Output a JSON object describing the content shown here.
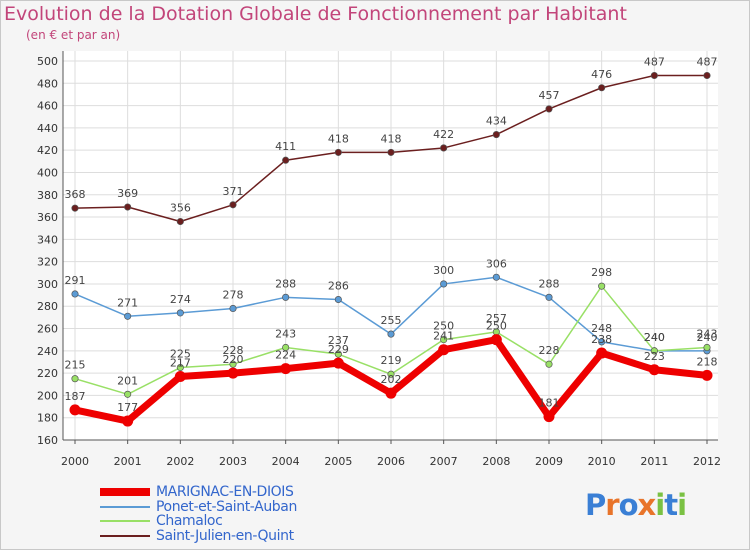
{
  "title": "Evolution de la Dotation Globale de Fonctionnement par Habitant",
  "subtitle": "(en € et par an)",
  "logo": {
    "text": "Proxiti",
    "letters": [
      "P",
      "r",
      "o",
      "x",
      "i",
      "t",
      "i"
    ],
    "colors": [
      "#3a7fd5",
      "#e8742a",
      "#3a7fd5",
      "#e8742a",
      "#7ac143",
      "#3a7fd5",
      "#7ac143"
    ]
  },
  "chart_data": {
    "type": "line",
    "title": "Evolution de la Dotation Globale de Fonctionnement par Habitant",
    "xlabel": "",
    "ylabel": "(en € et par an)",
    "x": [
      "2000",
      "2001",
      "2002",
      "2003",
      "2004",
      "2005",
      "2006",
      "2007",
      "2008",
      "2009",
      "2010",
      "2011",
      "2012"
    ],
    "ylim": [
      160,
      500
    ],
    "yticks": [
      160,
      180,
      200,
      220,
      240,
      260,
      280,
      300,
      320,
      340,
      360,
      380,
      400,
      420,
      440,
      460,
      480,
      500
    ],
    "ytick_labels": [
      "160",
      "180",
      "200",
      "220",
      "240",
      "260",
      "280",
      "300",
      "320",
      "340",
      "360",
      "380",
      "400",
      "420",
      "440",
      "460",
      "480",
      "500"
    ],
    "grid": true,
    "series": [
      {
        "name": "Saint-Julien-en-Quint",
        "color": "#6b1f1f",
        "values": [
          368,
          369,
          356,
          371,
          411,
          418,
          418,
          422,
          434,
          457,
          476,
          487,
          487
        ],
        "labels": [
          "368",
          "369",
          "356",
          "371",
          "411",
          "418",
          "418",
          "422",
          "434",
          "457",
          "476",
          "487",
          "487"
        ]
      },
      {
        "name": "Ponet-et-Saint-Auban",
        "color": "#5b9bd5",
        "values": [
          291,
          271,
          274,
          278,
          288,
          286,
          255,
          300,
          306,
          288,
          248,
          240,
          240
        ],
        "labels": [
          "291",
          "271",
          "274",
          "278",
          "288",
          "286",
          "255",
          "300",
          "306",
          "288",
          "248",
          "240",
          "240"
        ]
      },
      {
        "name": "Chamaloc",
        "color": "#99e066",
        "values": [
          215,
          201,
          225,
          228,
          243,
          237,
          219,
          250,
          257,
          228,
          298,
          240,
          243
        ],
        "labels": [
          "215",
          "201",
          "225",
          "228",
          "243",
          "237",
          "219",
          "250",
          "257",
          "228",
          "298",
          "240",
          "243"
        ]
      },
      {
        "name": "MARIGNAC-EN-DIOIS",
        "color": "#ee0000",
        "values": [
          187,
          177,
          217,
          220,
          224,
          229,
          202,
          241,
          250,
          181,
          238,
          223,
          218
        ],
        "labels": [
          "187",
          "177",
          "217",
          "220",
          "224",
          "229",
          "202",
          "241",
          "250",
          "181",
          "238",
          "223",
          "218"
        ]
      }
    ]
  },
  "legend": [
    {
      "name": "MARIGNAC-EN-DIOIS",
      "color": "#ee0000",
      "thick": true
    },
    {
      "name": "Ponet-et-Saint-Auban",
      "color": "#5b9bd5",
      "thick": false
    },
    {
      "name": "Chamaloc",
      "color": "#99e066",
      "thick": false
    },
    {
      "name": "Saint-Julien-en-Quint",
      "color": "#6b1f1f",
      "thick": false
    }
  ]
}
